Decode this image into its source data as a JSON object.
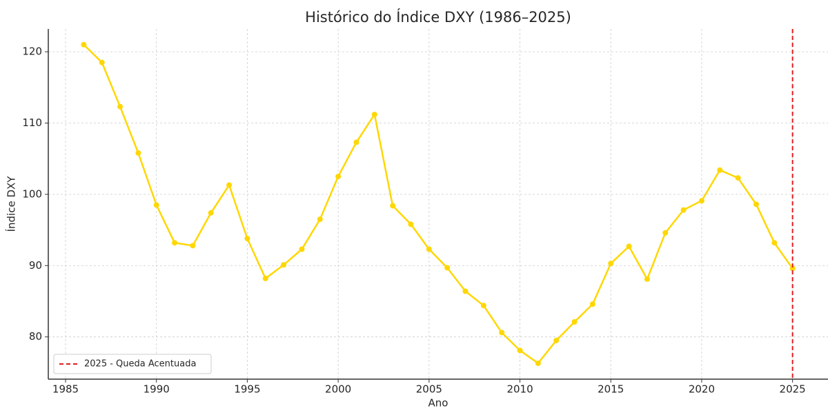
{
  "chart_data": {
    "type": "line",
    "title": "Histórico do Índice DXY (1986–2025)",
    "x_label": "Ano",
    "y_label": "Índice DXY",
    "x": [
      1986,
      1987,
      1988,
      1989,
      1990,
      1991,
      1992,
      1993,
      1994,
      1995,
      1996,
      1997,
      1998,
      1999,
      2000,
      2001,
      2002,
      2003,
      2004,
      2005,
      2006,
      2007,
      2008,
      2009,
      2010,
      2011,
      2012,
      2013,
      2014,
      2015,
      2016,
      2017,
      2018,
      2019,
      2020,
      2021,
      2022,
      2023,
      2024,
      2025
    ],
    "values": [
      121.0,
      118.5,
      112.3,
      105.8,
      98.5,
      93.2,
      92.8,
      97.4,
      101.3,
      93.8,
      88.2,
      90.1,
      92.3,
      96.5,
      102.5,
      107.3,
      111.2,
      98.4,
      95.8,
      92.3,
      89.7,
      86.4,
      84.4,
      80.6,
      78.1,
      76.3,
      79.5,
      82.1,
      84.6,
      90.3,
      92.7,
      88.1,
      94.6,
      97.8,
      99.1,
      103.4,
      102.3,
      98.6,
      93.2,
      89.6
    ],
    "color": "#ffd700",
    "xlim": [
      1984.05,
      2026.95
    ],
    "xticks": [
      1985,
      1990,
      1995,
      2000,
      2005,
      2010,
      2015,
      2020,
      2025
    ],
    "ylim": [
      74.07,
      123.2
    ],
    "yticks": [
      80,
      90,
      100,
      110,
      120
    ],
    "grid": true,
    "vline": {
      "x": 2025,
      "label": "2025 - Queda Acentuada",
      "color": "#e41a1c"
    },
    "legend": "lower left"
  }
}
